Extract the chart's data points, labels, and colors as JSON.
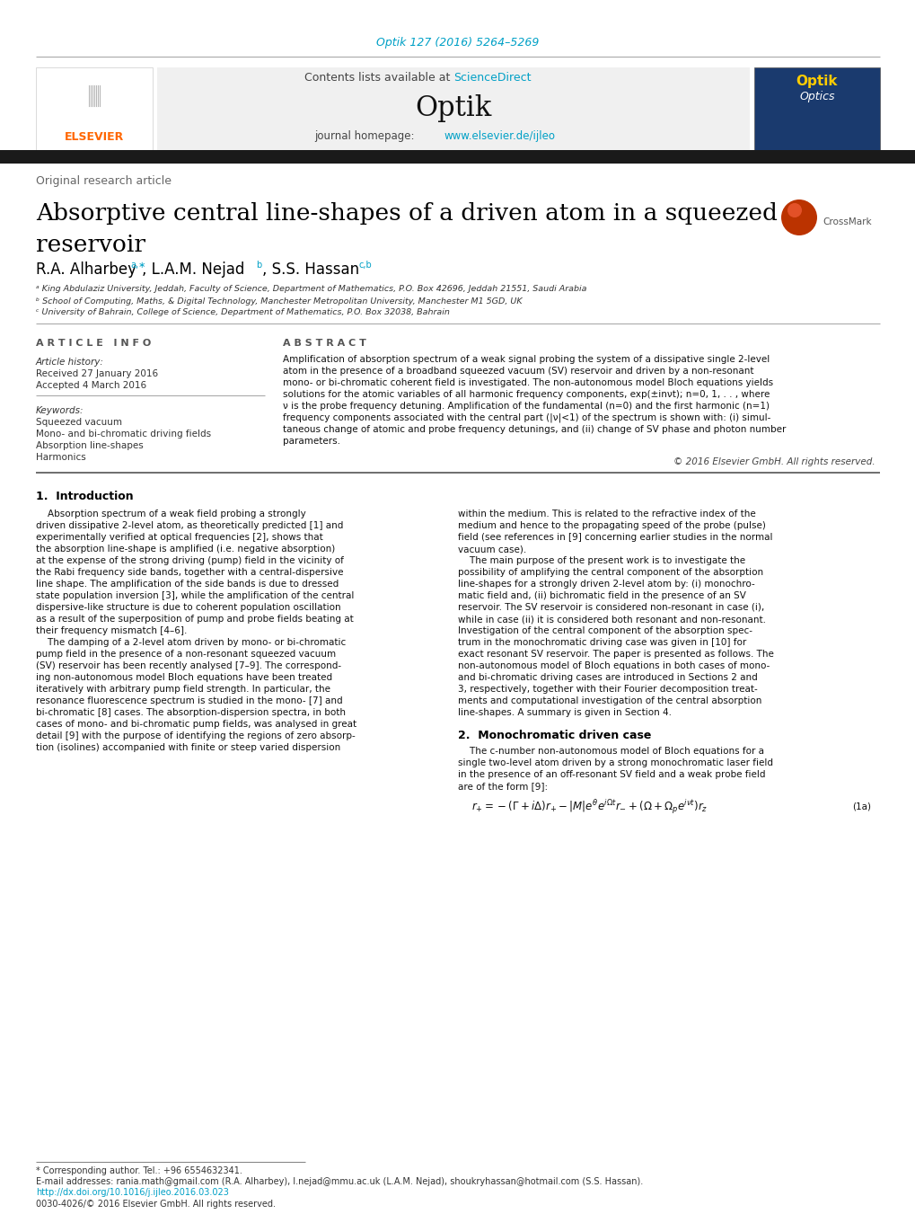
{
  "doi_text": "Optik 127 (2016) 5264–5269",
  "doi_color": "#00a0c6",
  "contents_text": "Contents lists available at ",
  "sciencedirect_text": "ScienceDirect",
  "sciencedirect_color": "#00a0c6",
  "journal_name": "Optik",
  "journal_homepage_text": "journal homepage: ",
  "journal_url": "www.elsevier.de/ijleo",
  "journal_url_color": "#00a0c6",
  "article_type": "Original research article",
  "paper_title_line1": "Absorptive central line-shapes of a driven atom in a squeezed",
  "paper_title_line2": "reservoir",
  "affil_a": "ᵃ King Abdulaziz University, Jeddah, Faculty of Science, Department of Mathematics, P.O. Box 42696, Jeddah 21551, Saudi Arabia",
  "affil_b": "ᵇ School of Computing, Maths, & Digital Technology, Manchester Metropolitan University, Manchester M1 5GD, UK",
  "affil_c": "ᶜ University of Bahrain, College of Science, Department of Mathematics, P.O. Box 32038, Bahrain",
  "article_info_title": "A R T I C L E   I N F O",
  "article_history_title": "Article history:",
  "received_text": "Received 27 January 2016",
  "accepted_text": "Accepted 4 March 2016",
  "keywords_title": "Keywords:",
  "keywords": [
    "Squeezed vacuum",
    "Mono- and bi-chromatic driving fields",
    "Absorption line-shapes",
    "Harmonics"
  ],
  "abstract_title": "A B S T R A C T",
  "copyright_text": "© 2016 Elsevier GmbH. All rights reserved.",
  "section1_title": "1.  Introduction",
  "section2_title": "2.  Monochromatic driven case",
  "footnote_corresp": "* Corresponding author. Tel.: +96 6554632341.",
  "footnote_email": "E-mail addresses: rania.math@gmail.com (R.A. Alharbey), l.nejad@mmu.ac.uk (L.A.M. Nejad), shoukryhassan@hotmail.com (S.S. Hassan).",
  "footnote_doi": "http://dx.doi.org/10.1016/j.ijleo.2016.03.023",
  "footnote_issn": "0030-4026/© 2016 Elsevier GmbH. All rights reserved.",
  "bg_color": "#ffffff",
  "text_color": "#000000",
  "black_bar_color": "#1a1a1a",
  "elsevier_color": "#ff6600",
  "doi_link_color": "#00a0c6"
}
